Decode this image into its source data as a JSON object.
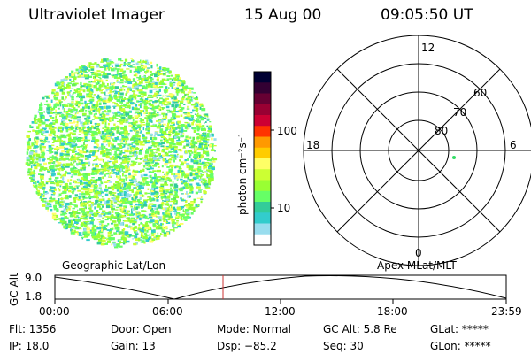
{
  "header": {
    "title": "Ultraviolet Imager",
    "date": "15 Aug 00",
    "time": "09:05:50 UT"
  },
  "colorbar": {
    "unit_label": "photon cm⁻²s⁻¹",
    "ticks": [
      "100",
      "10"
    ],
    "colors": [
      "#000033",
      "#330033",
      "#660033",
      "#990033",
      "#cc0033",
      "#ff3300",
      "#ff9900",
      "#ffcc00",
      "#ffff66",
      "#ccff33",
      "#99ff33",
      "#66ff66",
      "#33cc99",
      "#33cccc",
      "#99ddee",
      "#ffffff"
    ]
  },
  "polar_plot": {
    "clock_labels": {
      "top": "12",
      "right": "6",
      "bottom": "0",
      "left": "18"
    },
    "lat_labels": [
      "80",
      "70",
      "60"
    ],
    "point_color": "#33dd66"
  },
  "altitude_plot": {
    "left_header": "Geographic Lat/Lon",
    "right_header": "Apex MLat/MLT",
    "ylabel": "GC Alt",
    "yticks": [
      "9.0",
      "1.8"
    ],
    "xticks": [
      "00:00",
      "06:00",
      "12:00",
      "18:00",
      "23:59"
    ],
    "marker_color": "#cc3333"
  },
  "info": {
    "flt": "Flt: 1356",
    "ip": "IP: 18.0",
    "door": "Door: Open",
    "gain": "Gain: 13",
    "mode": "Mode: Normal",
    "dsp": "Dsp:  −85.2",
    "gcalt": "GC Alt: 5.8 Re",
    "seq": "Seq: 30",
    "glat": "GLat: *****",
    "glon": "GLon: *****"
  }
}
